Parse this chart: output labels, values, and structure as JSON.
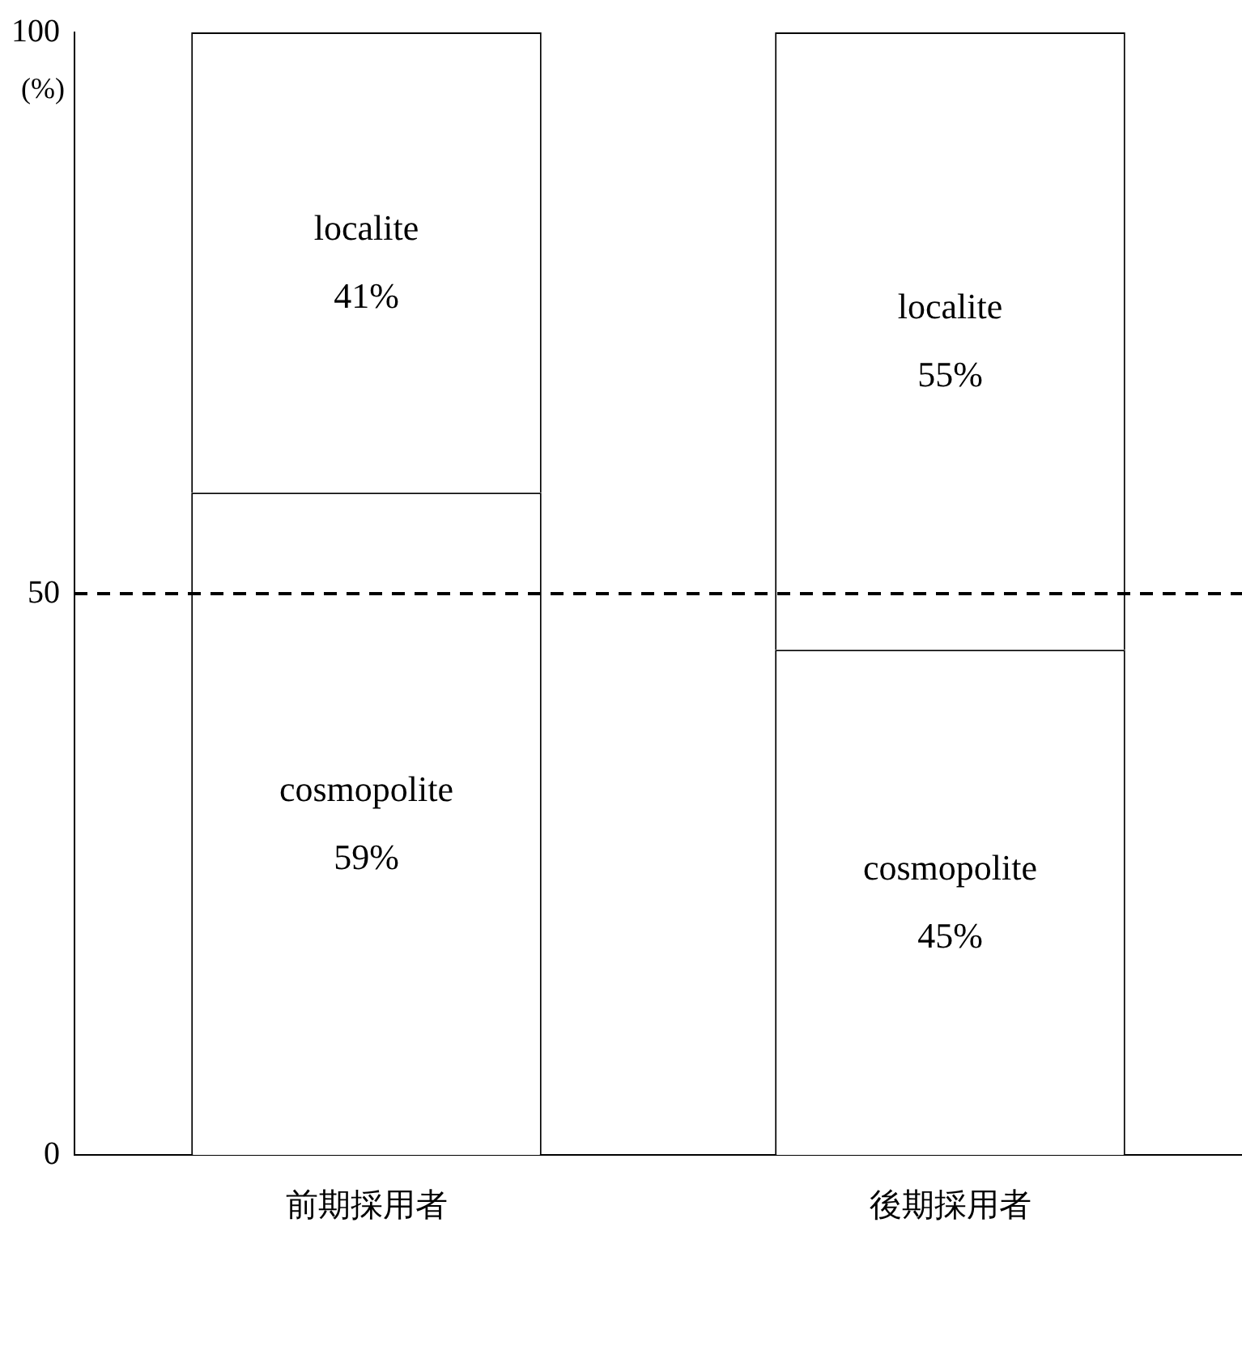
{
  "chart_data": {
    "type": "bar",
    "stacked": true,
    "ylabel": "(%)",
    "categories": [
      "前期採用者",
      "後期採用者"
    ],
    "series": [
      {
        "name": "cosmopolite",
        "color": "#ffffff",
        "values": [
          59,
          45
        ],
        "value_labels": [
          "59%",
          "45%"
        ]
      },
      {
        "name": "localite",
        "color": "#ffffff",
        "values": [
          41,
          55
        ],
        "value_labels": [
          "41%",
          "55%"
        ]
      }
    ],
    "ylim": [
      0,
      100
    ],
    "yticks": [
      0,
      50,
      100
    ],
    "legend": false,
    "ref_lines": [
      {
        "axis": "y",
        "value": 50,
        "label": null,
        "color": "#000000",
        "line_style": "dashed"
      }
    ]
  }
}
